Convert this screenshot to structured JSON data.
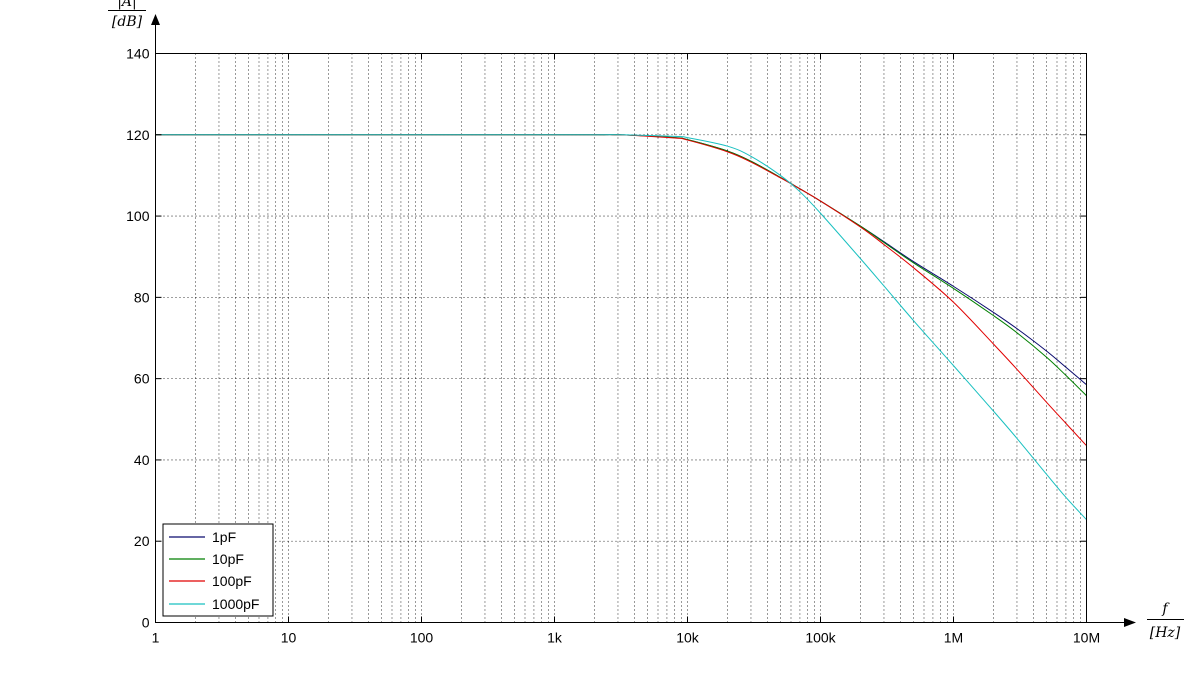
{
  "chart_data": {
    "type": "line",
    "xscale": "log",
    "xlim": [
      1,
      10000000
    ],
    "ylim": [
      0,
      140
    ],
    "grid": true,
    "legend_position": "bottom-left",
    "xlabel": "f",
    "xunit": "[Hz]",
    "ylabel": "|A|",
    "yunit": "[dB]",
    "x_ticks": [
      1,
      10,
      100,
      1000,
      10000,
      100000,
      1000000,
      10000000
    ],
    "x_tick_labels": [
      "1",
      "10",
      "100",
      "1k",
      "10k",
      "100k",
      "1M",
      "10M"
    ],
    "y_ticks": [
      0,
      20,
      40,
      60,
      80,
      100,
      120,
      140
    ],
    "y_tick_labels": [
      "0",
      "20",
      "40",
      "60",
      "80",
      "100",
      "120",
      "140"
    ],
    "series": [
      {
        "name": "1pF",
        "color": "#0a0a6e",
        "x": [
          1,
          1000,
          3000,
          8000,
          10000,
          20000,
          30000,
          50000,
          70000,
          100000,
          200000,
          300000,
          500000,
          1000000,
          2000000,
          3000000,
          5000000,
          7000000,
          10000000
        ],
        "y": [
          120,
          120,
          120,
          119.3,
          118.8,
          116,
          113.5,
          109.5,
          106.7,
          103.7,
          97.5,
          93.7,
          88.8,
          82.7,
          76.3,
          72.3,
          66.8,
          62.8,
          58.5
        ]
      },
      {
        "name": "10pF",
        "color": "#007f00",
        "x": [
          1,
          1000,
          3000,
          8000,
          10000,
          20000,
          30000,
          50000,
          70000,
          100000,
          200000,
          300000,
          500000,
          1000000,
          2000000,
          3000000,
          5000000,
          7000000,
          10000000
        ],
        "y": [
          120,
          120,
          120,
          119.3,
          118.8,
          116,
          113.5,
          109.5,
          106.7,
          103.7,
          97.5,
          93.5,
          88.5,
          82.2,
          75.5,
          71.3,
          65.3,
          60.8,
          55.8
        ]
      },
      {
        "name": "100pF",
        "color": "#e00000",
        "x": [
          1,
          1000,
          3000,
          8000,
          10000,
          20000,
          30000,
          50000,
          70000,
          100000,
          200000,
          300000,
          500000,
          1000000,
          2000000,
          3000000,
          5000000,
          7000000,
          10000000
        ],
        "y": [
          120,
          120,
          120,
          119.2,
          118.7,
          115.8,
          113.3,
          109.4,
          106.7,
          103.7,
          97.3,
          93,
          87.3,
          78.8,
          68.5,
          62.3,
          54.2,
          49,
          43.5
        ]
      },
      {
        "name": "1000pF",
        "color": "#19c0c0",
        "x": [
          1,
          1000,
          3000,
          8000,
          10000,
          20000,
          30000,
          50000,
          70000,
          100000,
          200000,
          300000,
          500000,
          1000000,
          2000000,
          3000000,
          5000000,
          7000000,
          10000000
        ],
        "y": [
          120,
          120,
          120,
          119.6,
          119.3,
          117.2,
          114.7,
          110,
          106,
          100.7,
          89.5,
          82.8,
          74.3,
          63.2,
          52,
          45.3,
          36.5,
          30.8,
          25.3
        ]
      }
    ]
  }
}
